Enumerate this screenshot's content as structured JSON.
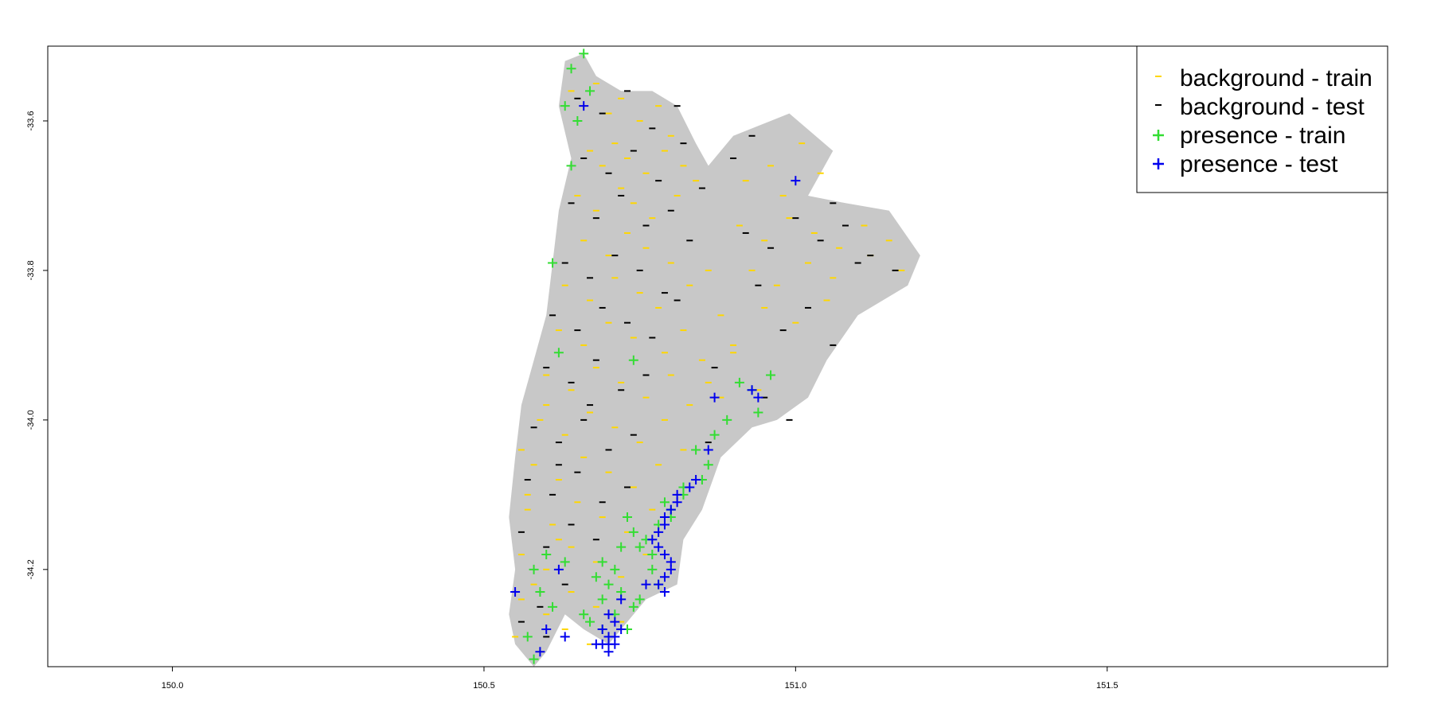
{
  "chart_data": {
    "type": "scatter",
    "title": "",
    "xlabel": "",
    "ylabel": "",
    "xlim": [
      149.8,
      151.95
    ],
    "ylim": [
      -34.33,
      -33.5
    ],
    "x_ticks": [
      150.0,
      150.5,
      151.0,
      151.5
    ],
    "x_tick_labels": [
      "150.0",
      "150.5",
      "151.0",
      "151.5"
    ],
    "y_ticks": [
      -33.6,
      -33.8,
      -34.0,
      -34.2
    ],
    "y_tick_labels": [
      "-33.6",
      "-33.8",
      "-34.0",
      "-34.2"
    ],
    "grid": false,
    "legend_position": "top-right",
    "colors": {
      "land": "#c8c8c8",
      "background_train": "#ffd700",
      "background_test": "#000000",
      "presence_train": "#33dd33",
      "presence_test": "#0000ee"
    },
    "land_regions": [
      [
        [
          150.63,
          -33.52
        ],
        [
          150.66,
          -33.51
        ],
        [
          150.68,
          -33.54
        ],
        [
          150.72,
          -33.56
        ],
        [
          150.77,
          -33.56
        ],
        [
          150.81,
          -33.58
        ],
        [
          150.84,
          -33.63
        ],
        [
          150.86,
          -33.66
        ],
        [
          150.9,
          -33.62
        ],
        [
          150.99,
          -33.59
        ],
        [
          151.06,
          -33.64
        ],
        [
          151.02,
          -33.7
        ],
        [
          151.08,
          -33.71
        ],
        [
          151.15,
          -33.72
        ],
        [
          151.2,
          -33.78
        ],
        [
          151.18,
          -33.82
        ],
        [
          151.1,
          -33.86
        ],
        [
          151.05,
          -33.92
        ],
        [
          151.02,
          -33.97
        ],
        [
          150.97,
          -34.0
        ],
        [
          150.93,
          -34.01
        ],
        [
          150.88,
          -34.05
        ],
        [
          150.85,
          -34.12
        ],
        [
          150.82,
          -34.16
        ],
        [
          150.81,
          -34.22
        ],
        [
          150.76,
          -34.24
        ],
        [
          150.72,
          -34.28
        ],
        [
          150.7,
          -34.3
        ],
        [
          150.66,
          -34.28
        ],
        [
          150.63,
          -34.26
        ],
        [
          150.6,
          -34.31
        ],
        [
          150.58,
          -34.33
        ],
        [
          150.55,
          -34.3
        ],
        [
          150.54,
          -34.26
        ],
        [
          150.55,
          -34.2
        ],
        [
          150.54,
          -34.13
        ],
        [
          150.55,
          -34.05
        ],
        [
          150.56,
          -33.98
        ],
        [
          150.58,
          -33.92
        ],
        [
          150.6,
          -33.86
        ],
        [
          150.61,
          -33.79
        ],
        [
          150.62,
          -33.72
        ],
        [
          150.64,
          -33.65
        ],
        [
          150.62,
          -33.58
        ]
      ]
    ],
    "series": [
      {
        "name": "background - train",
        "marker": "dash",
        "color": "#ffd700",
        "x": [
          150.64,
          150.66,
          150.68,
          150.7,
          150.72,
          150.75,
          150.78,
          150.8,
          150.67,
          150.69,
          150.71,
          150.73,
          150.76,
          150.79,
          150.82,
          150.65,
          150.68,
          150.72,
          150.74,
          150.77,
          150.81,
          150.84,
          150.66,
          150.7,
          150.73,
          150.76,
          150.8,
          150.63,
          150.67,
          150.71,
          150.75,
          150.78,
          150.83,
          150.86,
          150.62,
          150.66,
          150.7,
          150.74,
          150.79,
          150.82,
          150.88,
          150.6,
          150.64,
          150.68,
          150.72,
          150.76,
          150.8,
          150.85,
          150.9,
          150.94,
          150.59,
          150.63,
          150.67,
          150.71,
          150.75,
          150.79,
          150.83,
          150.88,
          150.58,
          150.62,
          150.66,
          150.7,
          150.74,
          150.78,
          150.82,
          150.57,
          150.61,
          150.65,
          150.69,
          150.73,
          150.77,
          150.56,
          150.6,
          150.64,
          150.68,
          150.72,
          150.76,
          150.56,
          150.6,
          150.64,
          150.68,
          150.72,
          150.55,
          150.59,
          150.63,
          150.67,
          150.56,
          150.6,
          150.62,
          150.58,
          150.57,
          150.91,
          150.95,
          150.99,
          151.03,
          151.07,
          151.11,
          151.15,
          150.93,
          150.97,
          151.02,
          151.06,
          151.12,
          151.17,
          150.95,
          151.0,
          151.05,
          150.92,
          150.96,
          151.01,
          150.9,
          150.86,
          150.98,
          151.04
        ],
        "y": [
          -33.56,
          -33.58,
          -33.55,
          -33.59,
          -33.57,
          -33.6,
          -33.58,
          -33.62,
          -33.64,
          -33.66,
          -33.63,
          -33.65,
          -33.67,
          -33.64,
          -33.66,
          -33.7,
          -33.72,
          -33.69,
          -33.71,
          -33.73,
          -33.7,
          -33.68,
          -33.76,
          -33.78,
          -33.75,
          -33.77,
          -33.79,
          -33.82,
          -33.84,
          -33.81,
          -33.83,
          -33.85,
          -33.82,
          -33.8,
          -33.88,
          -33.9,
          -33.87,
          -33.89,
          -33.91,
          -33.88,
          -33.86,
          -33.94,
          -33.96,
          -33.93,
          -33.95,
          -33.97,
          -33.94,
          -33.92,
          -33.9,
          -33.96,
          -34.0,
          -34.02,
          -33.99,
          -34.01,
          -34.03,
          -34.0,
          -33.98,
          -33.97,
          -34.06,
          -34.08,
          -34.05,
          -34.07,
          -34.09,
          -34.06,
          -34.04,
          -34.12,
          -34.14,
          -34.11,
          -34.13,
          -34.15,
          -34.12,
          -34.18,
          -34.2,
          -34.17,
          -34.19,
          -34.21,
          -34.18,
          -34.24,
          -34.26,
          -34.23,
          -34.25,
          -34.27,
          -34.29,
          -34.31,
          -34.28,
          -34.3,
          -34.04,
          -33.98,
          -34.16,
          -34.22,
          -34.1,
          -33.74,
          -33.76,
          -33.73,
          -33.75,
          -33.77,
          -33.74,
          -33.76,
          -33.8,
          -33.82,
          -33.79,
          -33.81,
          -33.78,
          -33.8,
          -33.85,
          -33.87,
          -33.84,
          -33.68,
          -33.66,
          -33.63,
          -33.91,
          -33.95,
          -33.7,
          -33.67
        ]
      },
      {
        "name": "background - test",
        "marker": "dash",
        "color": "#000000",
        "x": [
          150.65,
          150.69,
          150.73,
          150.77,
          150.81,
          150.66,
          150.7,
          150.74,
          150.78,
          150.82,
          150.64,
          150.68,
          150.72,
          150.76,
          150.8,
          150.85,
          150.63,
          150.67,
          150.71,
          150.75,
          150.79,
          150.83,
          150.61,
          150.65,
          150.69,
          150.73,
          150.77,
          150.81,
          150.6,
          150.64,
          150.68,
          150.72,
          150.76,
          150.58,
          150.62,
          150.66,
          150.7,
          150.74,
          150.57,
          150.61,
          150.65,
          150.69,
          150.73,
          150.56,
          150.6,
          150.64,
          150.68,
          150.55,
          150.59,
          150.63,
          150.56,
          150.6,
          150.62,
          150.67,
          150.92,
          150.96,
          151.0,
          151.04,
          151.08,
          151.12,
          151.16,
          150.94,
          151.02,
          151.06,
          150.98,
          151.1,
          150.9,
          150.87,
          150.95,
          150.99,
          150.93,
          150.86,
          151.06
        ],
        "y": [
          -33.57,
          -33.59,
          -33.56,
          -33.61,
          -33.58,
          -33.65,
          -33.67,
          -33.64,
          -33.68,
          -33.63,
          -33.71,
          -33.73,
          -33.7,
          -33.74,
          -33.72,
          -33.69,
          -33.79,
          -33.81,
          -33.78,
          -33.8,
          -33.83,
          -33.76,
          -33.86,
          -33.88,
          -33.85,
          -33.87,
          -33.89,
          -33.84,
          -33.93,
          -33.95,
          -33.92,
          -33.96,
          -33.94,
          -34.01,
          -34.03,
          -34.0,
          -34.04,
          -34.02,
          -34.08,
          -34.1,
          -34.07,
          -34.11,
          -34.09,
          -34.15,
          -34.17,
          -34.14,
          -34.16,
          -34.23,
          -34.25,
          -34.22,
          -34.27,
          -34.29,
          -34.06,
          -33.98,
          -33.75,
          -33.77,
          -33.73,
          -33.76,
          -33.74,
          -33.78,
          -33.8,
          -33.82,
          -33.85,
          -33.71,
          -33.88,
          -33.79,
          -33.65,
          -33.93,
          -33.97,
          -34.0,
          -33.62,
          -34.03,
          -33.9
        ]
      },
      {
        "name": "presence - train",
        "marker": "plus",
        "color": "#33dd33",
        "x": [
          150.66,
          150.63,
          150.64,
          150.67,
          150.65,
          150.64,
          150.61,
          150.91,
          150.93,
          150.96,
          150.94,
          150.89,
          150.87,
          150.86,
          150.85,
          150.82,
          150.8,
          150.78,
          150.76,
          150.74,
          150.73,
          150.75,
          150.77,
          150.79,
          150.71,
          150.7,
          150.68,
          150.69,
          150.72,
          150.74,
          150.78,
          150.66,
          150.67,
          150.69,
          150.71,
          150.75,
          150.6,
          150.58,
          150.59,
          150.61,
          150.57,
          150.63,
          150.8,
          150.82,
          150.84,
          150.73,
          150.77,
          150.69,
          150.72,
          150.62,
          150.58,
          150.74
        ],
        "y": [
          -33.51,
          -33.58,
          -33.53,
          -33.56,
          -33.6,
          -33.66,
          -33.79,
          -33.95,
          -33.96,
          -33.94,
          -33.99,
          -34.0,
          -34.02,
          -34.06,
          -34.08,
          -34.1,
          -34.12,
          -34.14,
          -34.16,
          -34.15,
          -34.13,
          -34.17,
          -34.18,
          -34.11,
          -34.2,
          -34.22,
          -34.21,
          -34.24,
          -34.23,
          -34.25,
          -34.22,
          -34.26,
          -34.27,
          -34.28,
          -34.26,
          -34.24,
          -34.18,
          -34.2,
          -34.23,
          -34.25,
          -34.29,
          -34.19,
          -34.13,
          -34.09,
          -34.04,
          -34.28,
          -34.2,
          -34.19,
          -34.17,
          -33.91,
          -34.32,
          -33.92
        ]
      },
      {
        "name": "presence - test",
        "marker": "plus",
        "color": "#0000ee",
        "x": [
          150.66,
          151.0,
          150.87,
          150.93,
          150.94,
          150.86,
          150.84,
          150.83,
          150.81,
          150.8,
          150.79,
          150.78,
          150.77,
          150.79,
          150.8,
          150.79,
          150.78,
          150.79,
          150.8,
          150.72,
          150.71,
          150.7,
          150.69,
          150.7,
          150.68,
          150.71,
          150.72,
          150.7,
          150.69,
          150.62,
          150.6,
          150.55,
          150.59,
          150.63,
          150.76,
          150.78,
          150.79,
          150.81,
          150.7,
          150.71
        ],
        "y": [
          -33.58,
          -33.68,
          -33.97,
          -33.96,
          -33.97,
          -34.04,
          -34.08,
          -34.09,
          -34.11,
          -34.12,
          -34.13,
          -34.15,
          -34.16,
          -34.18,
          -34.2,
          -34.21,
          -34.22,
          -34.23,
          -34.19,
          -34.24,
          -34.27,
          -34.29,
          -34.3,
          -34.31,
          -34.3,
          -34.29,
          -34.28,
          -34.26,
          -34.28,
          -34.2,
          -34.28,
          -34.23,
          -34.31,
          -34.29,
          -34.22,
          -34.17,
          -34.14,
          -34.1,
          -34.3,
          -34.3
        ]
      }
    ]
  }
}
